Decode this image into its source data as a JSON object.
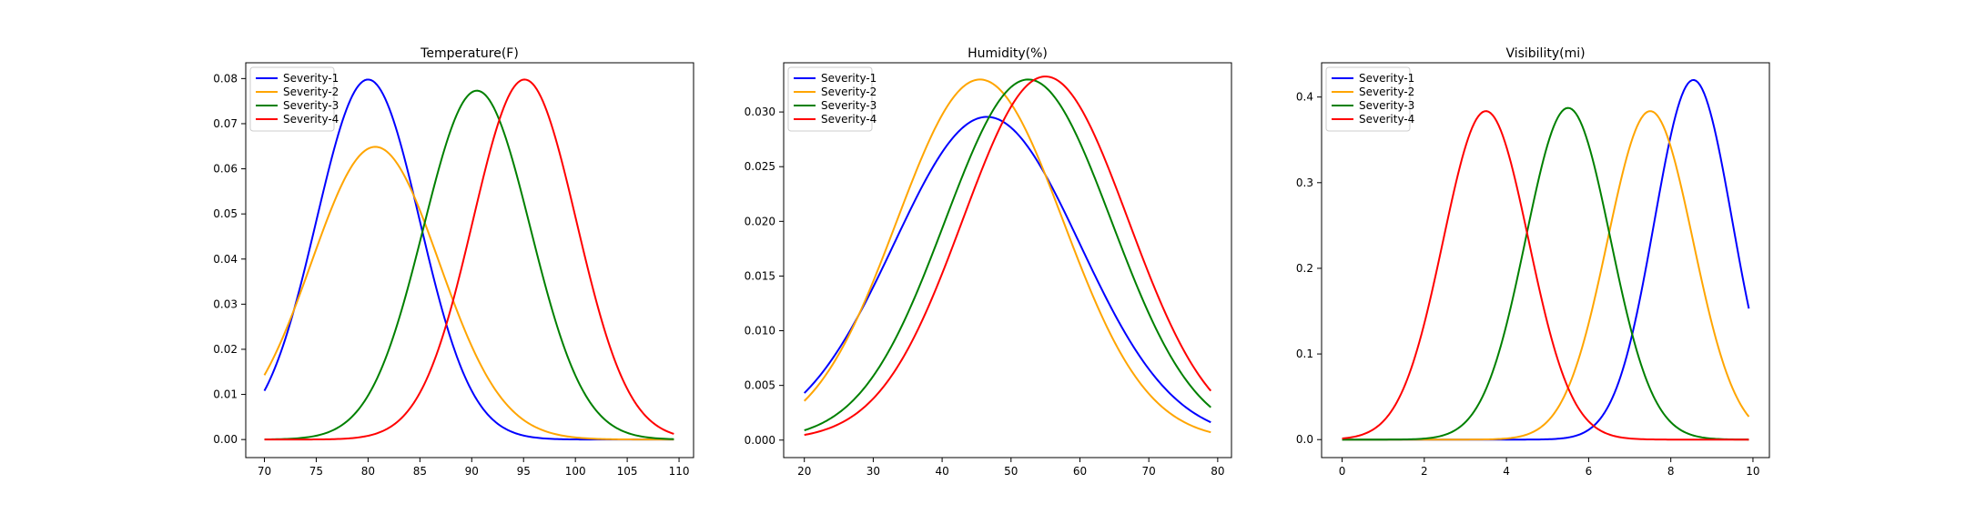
{
  "chart_data": [
    {
      "type": "line",
      "title": "Temperature(F)",
      "xlim": [
        68.2,
        111.4
      ],
      "ylim": [
        -0.004,
        0.0835
      ],
      "xticks": [
        70,
        75,
        80,
        85,
        90,
        95,
        100,
        105,
        110
      ],
      "yticks": [
        0.0,
        0.01,
        0.02,
        0.03,
        0.04,
        0.05,
        0.06,
        0.07,
        0.08
      ],
      "ytick_labels": [
        "0.00",
        "0.01",
        "0.02",
        "0.03",
        "0.04",
        "0.05",
        "0.06",
        "0.07",
        "0.08"
      ],
      "x_range": [
        70,
        109.5
      ],
      "legend_loc": "upper-left",
      "series": [
        {
          "name": "Severity-1",
          "color": "#0000ff",
          "mean": 80.0,
          "std": 5.0
        },
        {
          "name": "Severity-2",
          "color": "#ffa500",
          "mean": 80.7,
          "std": 6.15
        },
        {
          "name": "Severity-3",
          "color": "#008000",
          "mean": 90.5,
          "std": 5.16
        },
        {
          "name": "Severity-4",
          "color": "#ff0000",
          "mean": 95.1,
          "std": 5.0
        }
      ]
    },
    {
      "type": "line",
      "title": "Humidity(%)",
      "xlim": [
        17.0,
        82.0
      ],
      "ylim": [
        -0.0016,
        0.0345
      ],
      "xticks": [
        20,
        30,
        40,
        50,
        60,
        70,
        80
      ],
      "yticks": [
        0.0,
        0.005,
        0.01,
        0.015,
        0.02,
        0.025,
        0.03
      ],
      "ytick_labels": [
        "0.000",
        "0.005",
        "0.010",
        "0.015",
        "0.020",
        "0.025",
        "0.030"
      ],
      "x_range": [
        20,
        79
      ],
      "legend_loc": "upper-left",
      "series": [
        {
          "name": "Severity-1",
          "color": "#0000ff",
          "mean": 46.5,
          "std": 13.5
        },
        {
          "name": "Severity-2",
          "color": "#ffa500",
          "mean": 45.5,
          "std": 12.1
        },
        {
          "name": "Severity-3",
          "color": "#008000",
          "mean": 52.5,
          "std": 12.1
        },
        {
          "name": "Severity-4",
          "color": "#ff0000",
          "mean": 55.0,
          "std": 12.0
        }
      ]
    },
    {
      "type": "line",
      "title": "Visibility(mi)",
      "xlim": [
        -0.5,
        10.4
      ],
      "ylim": [
        -0.021,
        0.44
      ],
      "xticks": [
        0,
        2,
        4,
        6,
        8,
        10
      ],
      "yticks": [
        0.0,
        0.1,
        0.2,
        0.3,
        0.4
      ],
      "ytick_labels": [
        "0.0",
        "0.1",
        "0.2",
        "0.3",
        "0.4"
      ],
      "x_range": [
        0,
        9.9
      ],
      "legend_loc": "upper-left",
      "series": [
        {
          "name": "Severity-1",
          "color": "#0000ff",
          "mean": 8.55,
          "std": 0.95
        },
        {
          "name": "Severity-2",
          "color": "#ffa500",
          "mean": 7.5,
          "std": 1.04
        },
        {
          "name": "Severity-3",
          "color": "#008000",
          "mean": 5.5,
          "std": 1.03
        },
        {
          "name": "Severity-4",
          "color": "#ff0000",
          "mean": 3.5,
          "std": 1.04
        }
      ]
    }
  ]
}
